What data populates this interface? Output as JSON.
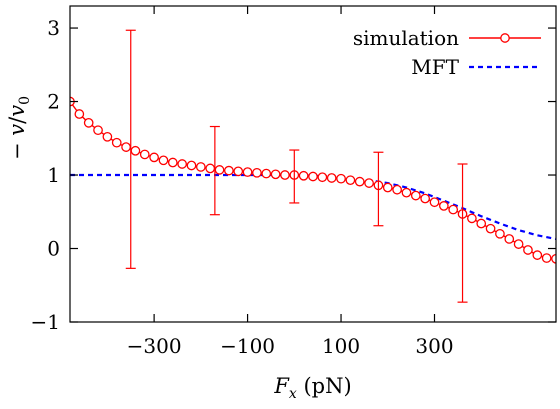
{
  "chart_data": {
    "type": "line",
    "xlabel": "F_x (pN)",
    "ylabel": "− v/v_0",
    "xlim": [
      -480,
      560
    ],
    "ylim": [
      -1,
      3.3
    ],
    "xticks": [
      -300,
      -100,
      100,
      300
    ],
    "xtick_labels": [
      "−300",
      "−100",
      "100",
      "300"
    ],
    "yticks": [
      -1,
      0,
      1,
      2,
      3
    ],
    "ytick_labels": [
      "−1",
      "0",
      "1",
      "2",
      "3"
    ],
    "grid": false,
    "legend_position": "top-right",
    "series": [
      {
        "name": "simulation",
        "style": "solid-line-open-circles",
        "color": "#ff0000",
        "x": [
          -480,
          -460,
          -440,
          -420,
          -400,
          -380,
          -360,
          -340,
          -320,
          -300,
          -280,
          -260,
          -240,
          -220,
          -200,
          -180,
          -160,
          -140,
          -120,
          -100,
          -80,
          -60,
          -40,
          -20,
          0,
          20,
          40,
          60,
          80,
          100,
          120,
          140,
          160,
          180,
          200,
          220,
          240,
          260,
          280,
          300,
          320,
          340,
          360,
          380,
          400,
          420,
          440,
          460,
          480,
          500,
          520,
          540,
          560
        ],
        "y": [
          2.0,
          1.83,
          1.71,
          1.61,
          1.52,
          1.44,
          1.38,
          1.33,
          1.28,
          1.24,
          1.2,
          1.17,
          1.15,
          1.13,
          1.11,
          1.09,
          1.07,
          1.06,
          1.05,
          1.04,
          1.03,
          1.02,
          1.01,
          1.0,
          1.0,
          0.99,
          0.98,
          0.97,
          0.96,
          0.95,
          0.93,
          0.91,
          0.89,
          0.86,
          0.83,
          0.8,
          0.76,
          0.72,
          0.68,
          0.63,
          0.58,
          0.53,
          0.47,
          0.41,
          0.34,
          0.27,
          0.2,
          0.13,
          0.06,
          -0.02,
          -0.09,
          -0.13,
          -0.14
        ],
        "error_bars": [
          {
            "x": -350,
            "y": 1.35,
            "low": -0.27,
            "high": 2.97
          },
          {
            "x": -170,
            "y": 1.06,
            "low": 0.46,
            "high": 1.66
          },
          {
            "x": 0,
            "y": 0.98,
            "low": 0.62,
            "high": 1.34
          },
          {
            "x": 180,
            "y": 0.81,
            "low": 0.31,
            "high": 1.31
          },
          {
            "x": 360,
            "y": 0.21,
            "low": -0.73,
            "high": 1.15
          }
        ]
      },
      {
        "name": "MFT",
        "style": "dashed",
        "color": "#0000ff",
        "x": [
          -480,
          -440,
          -400,
          -360,
          -320,
          -280,
          -240,
          -200,
          -160,
          -120,
          -80,
          -40,
          0,
          40,
          80,
          120,
          160,
          200,
          240,
          280,
          320,
          360,
          400,
          440,
          480,
          520,
          560
        ],
        "y": [
          1.0,
          1.0,
          1.0,
          1.0,
          1.0,
          1.0,
          1.0,
          1.0,
          1.0,
          1.0,
          1.0,
          1.0,
          1.0,
          0.99,
          0.98,
          0.96,
          0.93,
          0.89,
          0.83,
          0.75,
          0.65,
          0.55,
          0.44,
          0.34,
          0.25,
          0.18,
          0.13
        ]
      }
    ]
  }
}
